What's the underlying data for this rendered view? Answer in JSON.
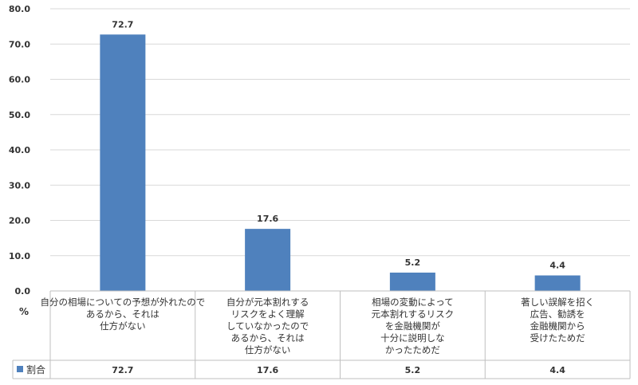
{
  "chart_data": {
    "type": "bar",
    "categories": [
      [
        "自分の相場についての予想が外れたので",
        "あるから、それは",
        "仕方がない"
      ],
      [
        "自分が元本割れする",
        "リスクをよく理解",
        "していなかったので",
        "あるから、それは",
        "仕方がない"
      ],
      [
        "相場の変動によって",
        "元本割れするリスク",
        "を金融機関が",
        "十分に説明しな",
        "かったためだ"
      ],
      [
        "著しい誤解を招く",
        "広告、勧誘を",
        "金融機関から",
        "受けたためだ"
      ]
    ],
    "series": [
      {
        "name": "割合",
        "values": [
          72.7,
          17.6,
          5.2,
          4.4
        ],
        "value_labels": [
          "72.7",
          "17.6",
          "5.2",
          "4.4"
        ]
      }
    ],
    "ylim": [
      0,
      80
    ],
    "yticks": [
      "0.0",
      "10.0",
      "20.0",
      "30.0",
      "40.0",
      "50.0",
      "60.0",
      "70.0",
      "80.0"
    ],
    "ylabel": "%",
    "grid": true,
    "legend": "data-table",
    "colors": {
      "bar": "#4f81bd",
      "grid": "#d9d9d9",
      "axis": "#bfbfbf",
      "text": "#333333"
    }
  }
}
